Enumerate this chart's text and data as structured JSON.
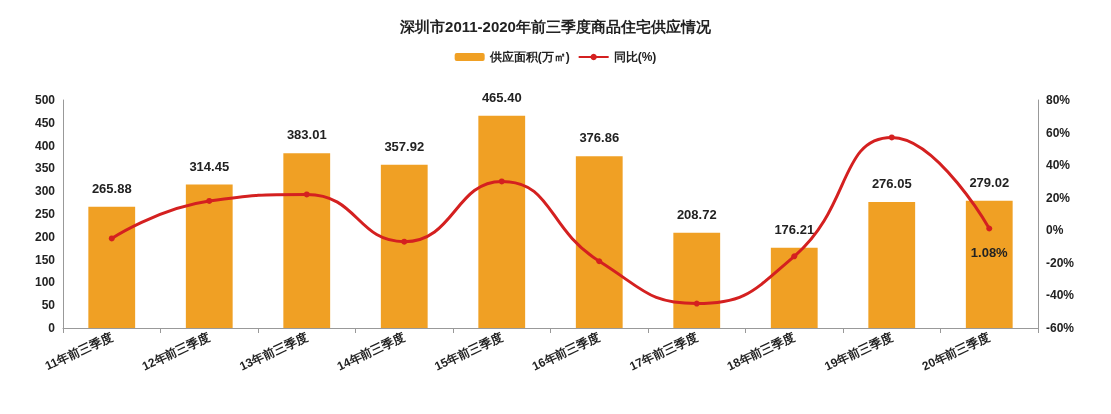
{
  "chart_data": {
    "type": "bar",
    "title": "深圳市2011-2020年前三季度商品住宅供应情况",
    "categories": [
      "11年前三季度",
      "12年前三季度",
      "13年前三季度",
      "14年前三季度",
      "15年前三季度",
      "16年前三季度",
      "17年前三季度",
      "18年前三季度",
      "19年前三季度",
      "20年前三季度"
    ],
    "series": [
      {
        "name": "供应面积(万㎡)",
        "color": "#f0a024",
        "values": [
          265.88,
          314.45,
          383.01,
          357.92,
          465.4,
          376.86,
          208.72,
          176.21,
          276.05,
          279.02
        ],
        "value_labels": [
          "265.88",
          "314.45",
          "383.01",
          "357.92",
          "465.40",
          "376.86",
          "208.72",
          "176.21",
          "276.05",
          "279.02"
        ]
      },
      {
        "name": "同比(%)",
        "type": "line",
        "axis": "y2",
        "color": "#d42020",
        "values": [
          -5,
          18,
          22,
          -7,
          30,
          -19,
          -45,
          -16,
          57,
          1.08
        ],
        "value_labels": [
          null,
          null,
          null,
          null,
          null,
          null,
          null,
          null,
          null,
          "1.08%"
        ]
      }
    ],
    "ylim": [
      0,
      500
    ],
    "yticks": [
      0,
      50,
      100,
      150,
      200,
      250,
      300,
      350,
      400,
      450,
      500
    ],
    "y2lim": [
      -60,
      80
    ],
    "y2ticks": [
      {
        "value": -60,
        "label": "-60%"
      },
      {
        "value": -40,
        "label": "-40%"
      },
      {
        "value": -20,
        "label": "-20%"
      },
      {
        "value": 0,
        "label": "0%"
      },
      {
        "value": 20,
        "label": "20%"
      },
      {
        "value": 40,
        "label": "40%"
      },
      {
        "value": 60,
        "label": "60%"
      },
      {
        "value": 80,
        "label": "80%"
      }
    ],
    "grid": false,
    "legend": "top",
    "marker": "circle",
    "line_style": "solid"
  }
}
